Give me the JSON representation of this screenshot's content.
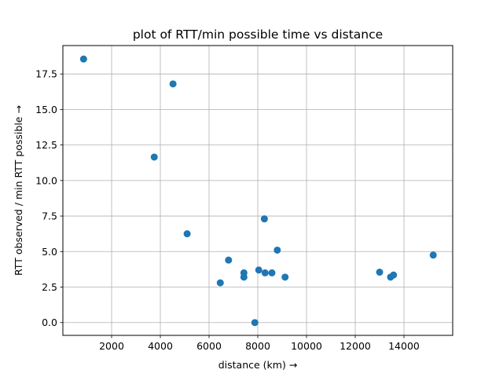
{
  "chart_data": {
    "type": "scatter",
    "title": "plot of RTT/min possible time vs distance",
    "xlabel": "distance (km) →",
    "ylabel": "RTT observed / min RTT possible →",
    "xlim": [
      0,
      16000
    ],
    "ylim": [
      -0.9,
      19.5
    ],
    "x_ticks": [
      2000,
      4000,
      6000,
      8000,
      10000,
      12000,
      14000
    ],
    "x_tick_labels": [
      "2000",
      "4000",
      "6000",
      "8000",
      "10000",
      "12000",
      "14000"
    ],
    "y_ticks": [
      0.0,
      2.5,
      5.0,
      7.5,
      10.0,
      12.5,
      15.0,
      17.5
    ],
    "y_tick_labels": [
      "0.0",
      "2.5",
      "5.0",
      "7.5",
      "10.0",
      "12.5",
      "15.0",
      "17.5"
    ],
    "grid": true,
    "marker_color": "#1f77b4",
    "points": [
      {
        "x": 850,
        "y": 18.55
      },
      {
        "x": 3750,
        "y": 11.65
      },
      {
        "x": 4520,
        "y": 16.8
      },
      {
        "x": 5100,
        "y": 6.25
      },
      {
        "x": 6460,
        "y": 2.8
      },
      {
        "x": 6800,
        "y": 4.4
      },
      {
        "x": 7430,
        "y": 3.5
      },
      {
        "x": 7430,
        "y": 3.2
      },
      {
        "x": 7880,
        "y": 0.0
      },
      {
        "x": 8040,
        "y": 3.7
      },
      {
        "x": 8270,
        "y": 7.3
      },
      {
        "x": 8300,
        "y": 3.5
      },
      {
        "x": 8580,
        "y": 3.5
      },
      {
        "x": 8800,
        "y": 5.1
      },
      {
        "x": 9120,
        "y": 3.2
      },
      {
        "x": 13000,
        "y": 3.55
      },
      {
        "x": 13450,
        "y": 3.2
      },
      {
        "x": 13570,
        "y": 3.35
      },
      {
        "x": 15200,
        "y": 4.75
      }
    ]
  }
}
